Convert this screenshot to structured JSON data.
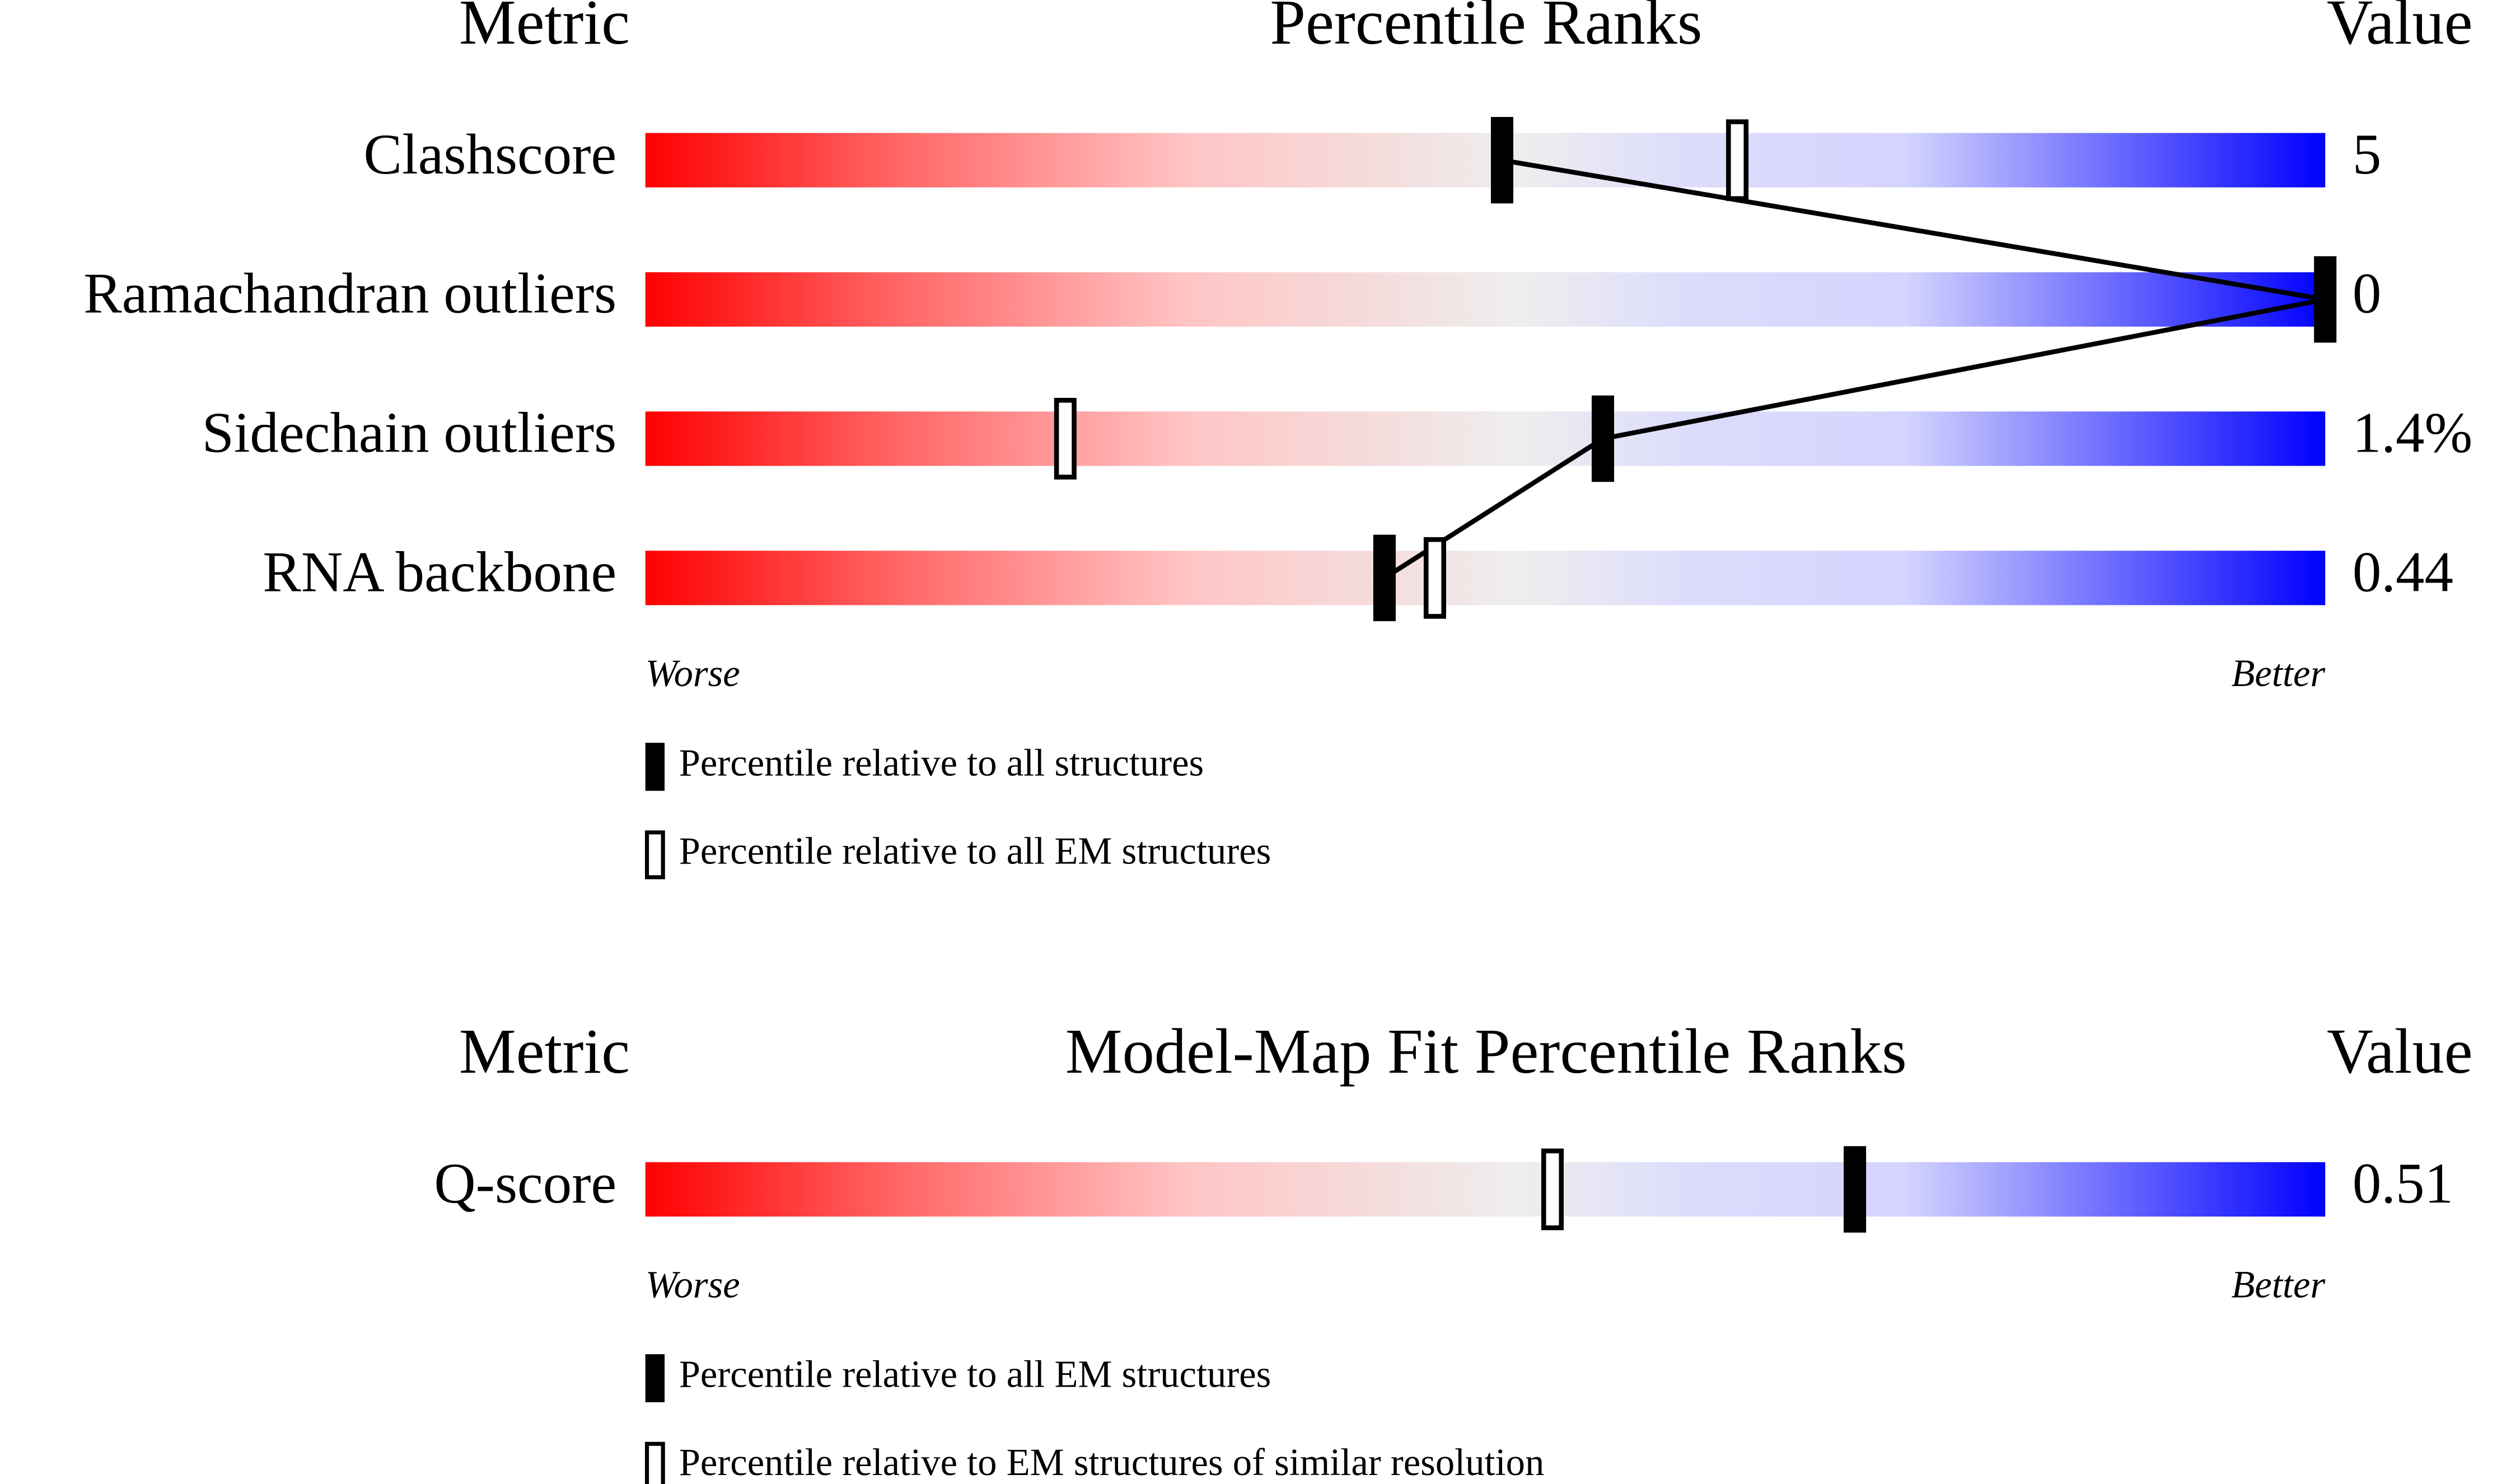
{
  "chart_data": [
    {
      "type": "slider",
      "header_metric": "Metric",
      "title": "Percentile Ranks",
      "header_value": "Value",
      "categories": [
        "Clashscore",
        "Ramachandran outliers",
        "Sidechain outliers",
        "RNA backbone"
      ],
      "metric_values": [
        "5",
        "0",
        "1.4%",
        "0.44"
      ],
      "series": [
        {
          "name": "Percentile relative to all structures",
          "style": "filled",
          "color": "#000000",
          "values": [
            51,
            100,
            57,
            44
          ]
        },
        {
          "name": "Percentile relative to all EM structures",
          "style": "hollow",
          "color": "#000000",
          "values": [
            65,
            null,
            25,
            47
          ]
        }
      ],
      "xlim": [
        0,
        100
      ],
      "left_label": "Worse",
      "right_label": "Better",
      "connector": true
    },
    {
      "type": "slider",
      "header_metric": "Metric",
      "title": "Model-Map Fit Percentile Ranks",
      "header_value": "Value",
      "categories": [
        "Q-score"
      ],
      "metric_values": [
        "0.51"
      ],
      "series": [
        {
          "name": "Percentile relative to all EM structures",
          "style": "filled",
          "color": "#000000",
          "values": [
            72
          ]
        },
        {
          "name": "Percentile relative to EM structures of similar resolution",
          "style": "hollow",
          "color": "#000000",
          "values": [
            54
          ]
        }
      ],
      "xlim": [
        0,
        100
      ],
      "left_label": "Worse",
      "right_label": "Better",
      "connector": true
    }
  ]
}
